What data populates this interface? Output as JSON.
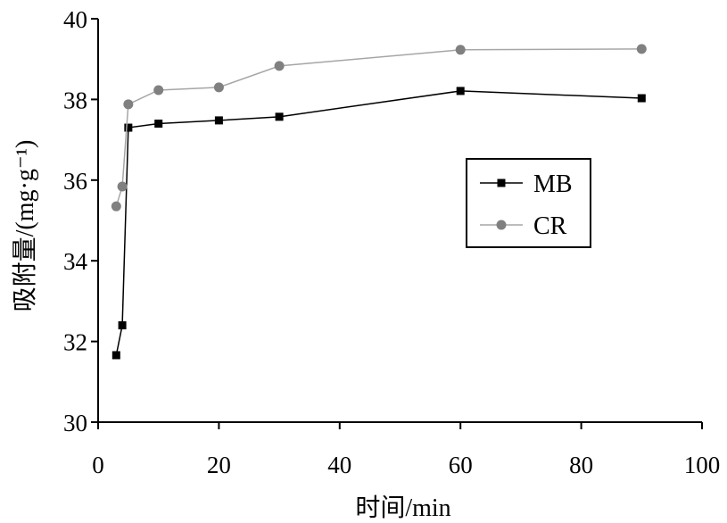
{
  "chart_data": {
    "type": "line",
    "title": "",
    "xlabel": "时间/min",
    "ylabel": "吸附量/(mg·g⁻¹)",
    "xlim": [
      0,
      100
    ],
    "ylim": [
      30,
      40
    ],
    "xticks": [
      0,
      20,
      40,
      60,
      80,
      100
    ],
    "yticks": [
      30,
      32,
      34,
      36,
      38,
      40
    ],
    "grid": false,
    "legend_position": "center-right",
    "series": [
      {
        "name": "MB",
        "marker": "square",
        "line_color": "#000000",
        "marker_color": "#000000",
        "x": [
          3,
          4,
          5,
          10,
          20,
          30,
          60,
          90
        ],
        "y": [
          31.66,
          32.4,
          37.3,
          37.4,
          37.48,
          37.57,
          38.21,
          38.03
        ]
      },
      {
        "name": "CR",
        "marker": "circle",
        "line_color": "#a6a6a6",
        "marker_color": "#808080",
        "x": [
          3,
          4,
          5,
          10,
          20,
          30,
          60,
          90
        ],
        "y": [
          35.35,
          35.84,
          37.88,
          38.23,
          38.3,
          38.83,
          39.23,
          39.25
        ]
      }
    ]
  }
}
